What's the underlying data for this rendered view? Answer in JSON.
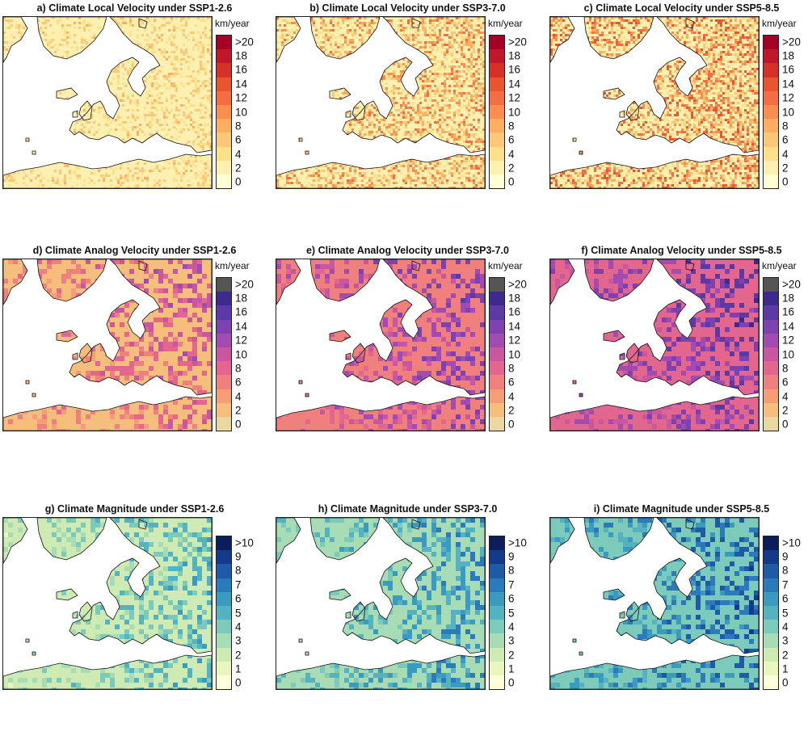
{
  "rows": [
    {
      "unit": "km/year",
      "ticks": [
        ">20",
        "18",
        "16",
        "14",
        "12",
        "10",
        "8",
        "6",
        "4",
        "2",
        "0"
      ],
      "colors": [
        "#a50026",
        "#c0182a",
        "#d73027",
        "#e8552f",
        "#f46d43",
        "#f88e4f",
        "#fdae61",
        "#fdc77a",
        "#fee08b",
        "#fef0b0",
        "#ffffd4"
      ],
      "panels": [
        {
          "title": "a) Climate Local Velocity under SSP1-2.6",
          "intensity": 0.15
        },
        {
          "title": "b) Climate Local Velocity under SSP3-7.0",
          "intensity": 0.45
        },
        {
          "title": "c) Climate Local Velocity under SSP5-8.5",
          "intensity": 0.6
        }
      ]
    },
    {
      "unit": "km/year",
      "ticks": [
        ">20",
        "18",
        "16",
        "14",
        "12",
        "10",
        "8",
        "6",
        "4",
        "2",
        "0"
      ],
      "colors": [
        "#555555",
        "#3d2a8c",
        "#5b3aa6",
        "#7d42b0",
        "#a24bb0",
        "#c9579f",
        "#e3668f",
        "#f0807e",
        "#f59e76",
        "#f5be7c",
        "#ead8a1"
      ],
      "panels": [
        {
          "title": "d) Climate Analog Velocity under SSP1-2.6",
          "intensity": 0.25
        },
        {
          "title": "e) Climate Analog Velocity under SSP3-7.0",
          "intensity": 0.5
        },
        {
          "title": "f) Climate Analog Velocity under SSP5-8.5",
          "intensity": 0.65
        }
      ]
    },
    {
      "unit": "",
      "ticks": [
        ">10",
        "9",
        "8",
        "7",
        "6",
        "5",
        "4",
        "3",
        "2",
        "1",
        "0"
      ],
      "colors": [
        "#0b1e5b",
        "#143a8a",
        "#1f5aa6",
        "#2b7bba",
        "#3a9ac0",
        "#55b3c1",
        "#7ccab9",
        "#a7dcb4",
        "#cdebb2",
        "#e9f6be",
        "#ffffd9"
      ],
      "panels": [
        {
          "title": "g) Climate Magnitude under SSP1-2.6",
          "intensity": 0.35
        },
        {
          "title": "h) Climate Magnitude under SSP3-7.0",
          "intensity": 0.55
        },
        {
          "title": "i) Climate Magnitude under SSP5-8.5",
          "intensity": 0.75
        }
      ]
    }
  ]
}
